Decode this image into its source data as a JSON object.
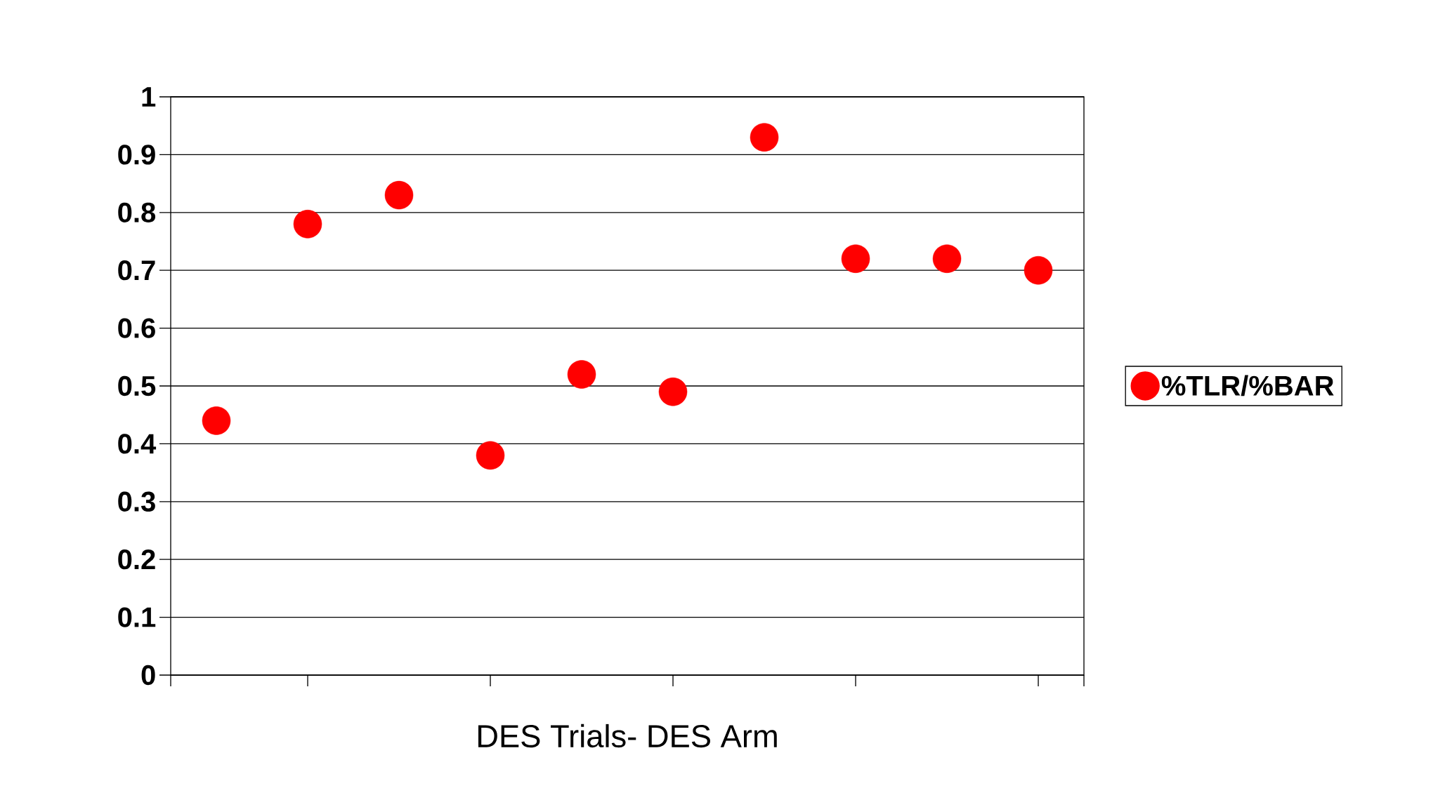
{
  "chart_data": {
    "type": "scatter",
    "xlabel": "DES Trials- DES Arm",
    "categories": [
      null,
      null,
      null,
      null,
      null,
      null,
      null,
      null,
      null,
      null
    ],
    "ylim": [
      0,
      1
    ],
    "yticks": [
      0,
      0.1,
      0.2,
      0.3,
      0.4,
      0.5,
      0.6,
      0.7,
      0.8,
      0.9,
      1
    ],
    "tick_labels": "y",
    "series": [
      {
        "name": "%TLR/%BAR",
        "color": "#ff0000",
        "values": [
          0.44,
          0.78,
          0.83,
          0.38,
          0.52,
          0.49,
          0.93,
          0.72,
          0.72,
          0.7
        ]
      }
    ],
    "grid": "y",
    "legend": "right"
  }
}
